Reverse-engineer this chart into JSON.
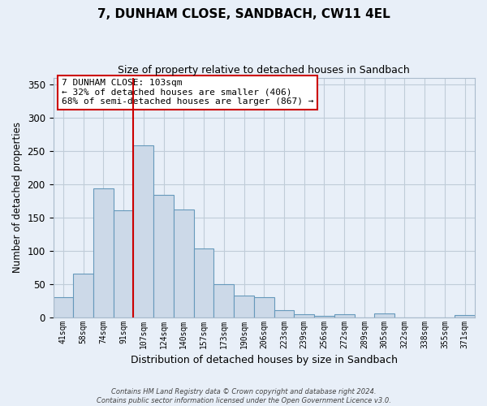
{
  "title": "7, DUNHAM CLOSE, SANDBACH, CW11 4EL",
  "subtitle": "Size of property relative to detached houses in Sandbach",
  "xlabel": "Distribution of detached houses by size in Sandbach",
  "ylabel": "Number of detached properties",
  "categories": [
    "41sqm",
    "58sqm",
    "74sqm",
    "91sqm",
    "107sqm",
    "124sqm",
    "140sqm",
    "157sqm",
    "173sqm",
    "190sqm",
    "206sqm",
    "223sqm",
    "239sqm",
    "256sqm",
    "272sqm",
    "289sqm",
    "305sqm",
    "322sqm",
    "338sqm",
    "355sqm",
    "371sqm"
  ],
  "values": [
    30,
    65,
    193,
    160,
    258,
    184,
    162,
    103,
    50,
    32,
    30,
    11,
    5,
    2,
    5,
    0,
    6,
    0,
    0,
    0,
    3
  ],
  "bar_color": "#ccd9e8",
  "bar_edge_color": "#6699bb",
  "vline_index": 4,
  "vline_color": "#cc0000",
  "annotation_text": "7 DUNHAM CLOSE: 103sqm\n← 32% of detached houses are smaller (406)\n68% of semi-detached houses are larger (867) →",
  "ylim": [
    0,
    360
  ],
  "yticks": [
    0,
    50,
    100,
    150,
    200,
    250,
    300,
    350
  ],
  "footer_line1": "Contains HM Land Registry data © Crown copyright and database right 2024.",
  "footer_line2": "Contains public sector information licensed under the Open Government Licence v3.0.",
  "bg_color": "#e8eff8",
  "plot_bg_color": "#e8eff8",
  "grid_color": "#c0ccd8",
  "annotation_edge_color": "#cc0000",
  "annotation_face_color": "#ffffff"
}
